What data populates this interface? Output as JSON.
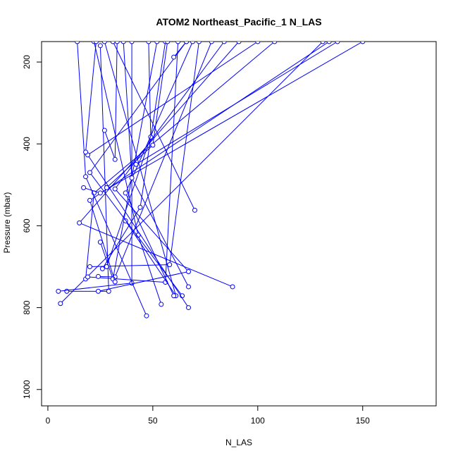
{
  "chart_data": {
    "type": "line",
    "title": "ATOM2 Northeast_Pacific_1 N_LAS",
    "xlabel": "N_LAS",
    "ylabel": "Pressure (mbar)",
    "xlim": [
      -3,
      185
    ],
    "ylim": [
      1040,
      150
    ],
    "y_reversed": true,
    "xticks": [
      0,
      50,
      100,
      150
    ],
    "yticks": [
      200,
      400,
      600,
      800,
      1000
    ],
    "grid": false,
    "color": "#0000ff",
    "marker": "open-circle",
    "series": [
      {
        "points": [
          [
            6,
            790
          ],
          [
            131,
            150
          ]
        ]
      },
      {
        "points": [
          [
            9,
            760
          ],
          [
            29,
            760
          ],
          [
            25,
            160
          ]
        ]
      },
      {
        "points": [
          [
            5,
            760
          ],
          [
            40,
            740
          ],
          [
            40,
            150
          ]
        ]
      },
      {
        "points": [
          [
            20,
            700
          ],
          [
            58,
            695
          ],
          [
            72,
            150
          ]
        ]
      },
      {
        "points": [
          [
            18,
            730
          ],
          [
            22,
            520
          ],
          [
            108,
            150
          ]
        ]
      },
      {
        "points": [
          [
            19,
            725
          ],
          [
            56,
            738
          ],
          [
            62,
            150
          ]
        ]
      },
      {
        "points": [
          [
            24,
            724
          ],
          [
            32,
            725
          ],
          [
            78,
            150
          ]
        ]
      },
      {
        "points": [
          [
            26,
            705
          ],
          [
            44,
            555
          ],
          [
            56,
            150
          ]
        ]
      },
      {
        "points": [
          [
            28,
            700
          ],
          [
            49,
            383
          ],
          [
            48,
            150
          ]
        ]
      },
      {
        "points": [
          [
            24,
            760
          ],
          [
            67,
            712
          ],
          [
            32,
            510
          ],
          [
            84,
            150
          ]
        ]
      },
      {
        "points": [
          [
            25,
            640
          ],
          [
            31,
            730
          ],
          [
            52,
            150
          ]
        ]
      },
      {
        "points": [
          [
            32,
            737
          ],
          [
            20,
            538
          ],
          [
            134,
            150
          ]
        ]
      },
      {
        "points": [
          [
            37,
            588
          ],
          [
            61,
            771
          ],
          [
            27,
            150
          ]
        ]
      },
      {
        "points": [
          [
            47,
            820
          ],
          [
            18,
            480
          ],
          [
            14,
            150
          ]
        ]
      },
      {
        "points": [
          [
            54,
            792
          ],
          [
            43,
            623
          ],
          [
            22,
            150
          ]
        ]
      },
      {
        "points": [
          [
            60,
            771
          ],
          [
            37,
            520
          ],
          [
            69,
            150
          ]
        ]
      },
      {
        "points": [
          [
            64,
            771
          ],
          [
            20,
            470
          ],
          [
            66,
            150
          ]
        ]
      },
      {
        "points": [
          [
            67,
            800
          ],
          [
            19,
            427
          ],
          [
            100,
            150
          ]
        ]
      },
      {
        "points": [
          [
            67,
            749
          ],
          [
            40,
            483
          ],
          [
            36,
            150
          ]
        ]
      },
      {
        "points": [
          [
            88,
            749
          ],
          [
            15,
            593
          ],
          [
            91,
            150
          ]
        ]
      },
      {
        "points": [
          [
            70,
            562
          ],
          [
            31,
            150
          ]
        ]
      },
      {
        "points": [
          [
            27,
            367
          ],
          [
            32,
            438
          ],
          [
            33,
            150
          ]
        ]
      },
      {
        "points": [
          [
            60,
            188
          ],
          [
            66,
            150
          ]
        ]
      },
      {
        "points": [
          [
            18,
            420
          ],
          [
            23,
            150
          ]
        ]
      },
      {
        "points": [
          [
            17,
            507
          ],
          [
            25,
            520
          ],
          [
            150,
            150
          ]
        ]
      },
      {
        "points": [
          [
            28,
            507
          ],
          [
            50,
            403
          ],
          [
            57,
            150
          ]
        ]
      },
      {
        "points": [
          [
            42,
            450
          ],
          [
            138,
            150
          ]
        ]
      }
    ]
  }
}
